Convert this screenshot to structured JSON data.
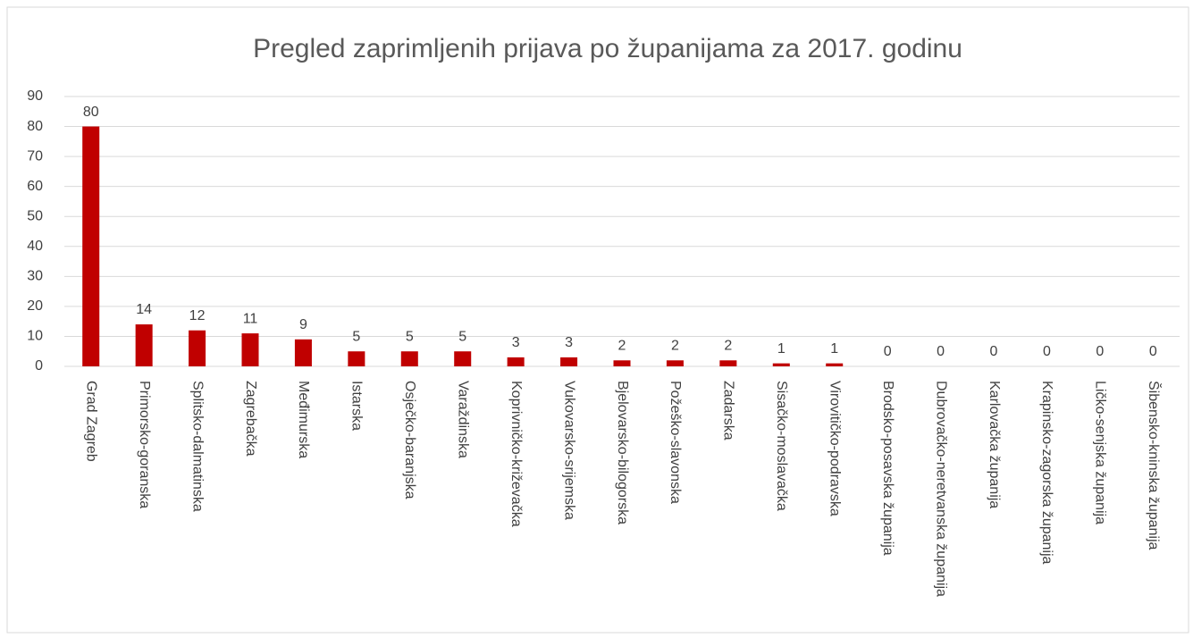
{
  "chart_data": {
    "type": "bar",
    "title": "Pregled zaprimljenih prijava po županijama za 2017. godinu",
    "categories": [
      "Grad Zagreb",
      "Primorsko-goranska",
      "Splitsko-dalmatinska",
      "Zagrebačka",
      "Međimurska",
      "Istarska",
      "Osječko-baranjska",
      "Varaždinska",
      "Koprivničko-križevačka",
      "Vukovarsko-srijemska",
      "Bjelovarsko-bilogorska",
      "Požeško-slavonska",
      "Zadarska",
      "Sisačko-moslavačka",
      "Virovitičko-podravska",
      "Brodsko-posavska županija",
      "Dubrovačko-neretvanska županija",
      "Karlovačka županija",
      "Krapinsko-zagorska županija",
      "Ličko-senjska županija",
      "Šibensko-kninska županija"
    ],
    "values": [
      80,
      14,
      12,
      11,
      9,
      5,
      5,
      5,
      3,
      3,
      2,
      2,
      2,
      1,
      1,
      0,
      0,
      0,
      0,
      0,
      0
    ],
    "color": "#c00000",
    "ylim": [
      0,
      90
    ],
    "yticks": [
      0,
      10,
      20,
      30,
      40,
      50,
      60,
      70,
      80,
      90
    ],
    "grid": true
  }
}
